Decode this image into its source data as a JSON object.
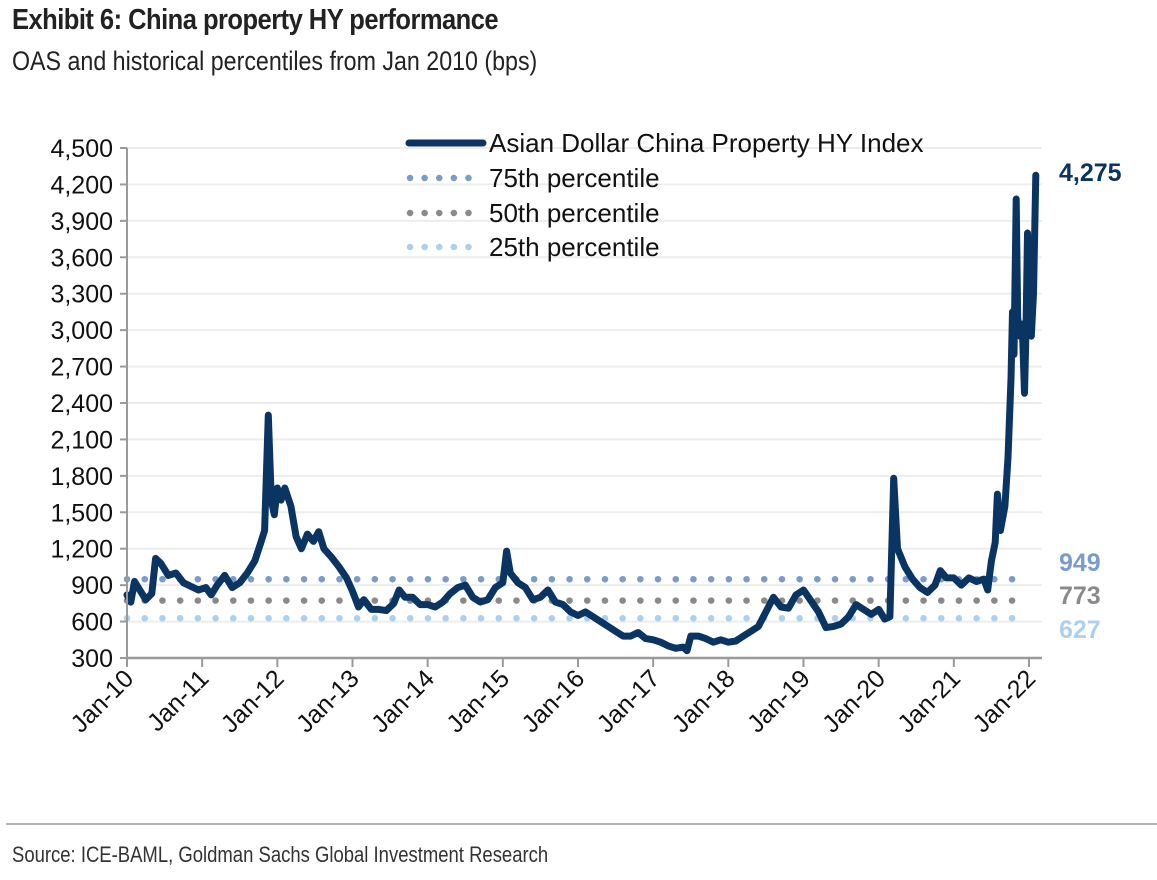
{
  "header": {
    "title": "Exhibit 6: China property HY performance",
    "subtitle": "OAS and historical percentiles from Jan 2010 (bps)"
  },
  "footer": {
    "source": "Source: ICE-BAML, Goldman Sachs Global Investment Research"
  },
  "colors": {
    "index": "#0a3563",
    "p75": "#7a9ccb",
    "p50": "#8a8a8a",
    "p25": "#acd0ee",
    "grid": "#ededed",
    "axis": "#9a9a9a"
  },
  "chart_data": {
    "type": "line",
    "title": "Exhibit 6: China property HY performance",
    "subtitle": "OAS and historical percentiles from Jan 2010 (bps)",
    "xlabel": "",
    "ylabel": "",
    "ylim": [
      300,
      4500
    ],
    "yticks": [
      300,
      600,
      900,
      1200,
      1500,
      1800,
      2100,
      2400,
      2700,
      3000,
      3300,
      3600,
      3900,
      4200,
      4500
    ],
    "ytick_labels": [
      "300",
      "600",
      "900",
      "1,200",
      "1,500",
      "1,800",
      "2,100",
      "2,400",
      "2,700",
      "3,000",
      "3,300",
      "3,600",
      "3,900",
      "4,200",
      "4,500"
    ],
    "xlim": [
      2010.0,
      2022.2
    ],
    "xticks": [
      2010,
      2011,
      2012,
      2013,
      2014,
      2015,
      2016,
      2017,
      2018,
      2019,
      2020,
      2021,
      2022
    ],
    "xtick_labels": [
      "Jan-10",
      "Jan-11",
      "Jan-12",
      "Jan-13",
      "Jan-14",
      "Jan-15",
      "Jan-16",
      "Jan-17",
      "Jan-18",
      "Jan-19",
      "Jan-20",
      "Jan-21",
      "Jan-22"
    ],
    "grid": true,
    "legend": {
      "placement": "top-center",
      "entries": [
        {
          "label": "Asian Dollar China Property HY Index",
          "style": "solid",
          "series": "index"
        },
        {
          "label": "75th percentile",
          "style": "dotted",
          "series": "p75"
        },
        {
          "label": "50th percentile",
          "style": "dotted",
          "series": "p50"
        },
        {
          "label": "25th percentile",
          "style": "dotted",
          "series": "p25"
        }
      ]
    },
    "series": [
      {
        "name": "Asian Dollar China Property HY Index",
        "key": "index",
        "points": [
          [
            2010.0,
            820
          ],
          [
            2010.05,
            760
          ],
          [
            2010.1,
            930
          ],
          [
            2010.18,
            850
          ],
          [
            2010.25,
            780
          ],
          [
            2010.33,
            830
          ],
          [
            2010.38,
            1120
          ],
          [
            2010.45,
            1080
          ],
          [
            2010.55,
            980
          ],
          [
            2010.65,
            1000
          ],
          [
            2010.75,
            920
          ],
          [
            2010.85,
            890
          ],
          [
            2010.95,
            860
          ],
          [
            2011.05,
            880
          ],
          [
            2011.12,
            820
          ],
          [
            2011.2,
            900
          ],
          [
            2011.3,
            980
          ],
          [
            2011.4,
            880
          ],
          [
            2011.5,
            920
          ],
          [
            2011.6,
            1000
          ],
          [
            2011.7,
            1100
          ],
          [
            2011.78,
            1250
          ],
          [
            2011.83,
            1350
          ],
          [
            2011.88,
            2300
          ],
          [
            2011.92,
            1600
          ],
          [
            2011.96,
            1480
          ],
          [
            2012.0,
            1700
          ],
          [
            2012.05,
            1600
          ],
          [
            2012.1,
            1700
          ],
          [
            2012.18,
            1550
          ],
          [
            2012.25,
            1300
          ],
          [
            2012.32,
            1200
          ],
          [
            2012.4,
            1320
          ],
          [
            2012.48,
            1260
          ],
          [
            2012.55,
            1340
          ],
          [
            2012.62,
            1200
          ],
          [
            2012.72,
            1130
          ],
          [
            2012.82,
            1050
          ],
          [
            2012.92,
            960
          ],
          [
            2013.0,
            850
          ],
          [
            2013.08,
            720
          ],
          [
            2013.15,
            780
          ],
          [
            2013.25,
            700
          ],
          [
            2013.35,
            700
          ],
          [
            2013.45,
            690
          ],
          [
            2013.55,
            750
          ],
          [
            2013.62,
            860
          ],
          [
            2013.7,
            800
          ],
          [
            2013.8,
            800
          ],
          [
            2013.9,
            740
          ],
          [
            2014.0,
            740
          ],
          [
            2014.1,
            720
          ],
          [
            2014.2,
            760
          ],
          [
            2014.3,
            830
          ],
          [
            2014.4,
            880
          ],
          [
            2014.5,
            900
          ],
          [
            2014.6,
            800
          ],
          [
            2014.7,
            760
          ],
          [
            2014.8,
            780
          ],
          [
            2014.9,
            880
          ],
          [
            2015.0,
            920
          ],
          [
            2015.05,
            1180
          ],
          [
            2015.1,
            1000
          ],
          [
            2015.2,
            920
          ],
          [
            2015.3,
            880
          ],
          [
            2015.4,
            780
          ],
          [
            2015.5,
            800
          ],
          [
            2015.6,
            860
          ],
          [
            2015.7,
            760
          ],
          [
            2015.8,
            740
          ],
          [
            2015.9,
            680
          ],
          [
            2016.0,
            650
          ],
          [
            2016.1,
            680
          ],
          [
            2016.2,
            640
          ],
          [
            2016.3,
            600
          ],
          [
            2016.4,
            560
          ],
          [
            2016.5,
            520
          ],
          [
            2016.6,
            480
          ],
          [
            2016.7,
            480
          ],
          [
            2016.8,
            510
          ],
          [
            2016.9,
            460
          ],
          [
            2017.0,
            450
          ],
          [
            2017.1,
            430
          ],
          [
            2017.2,
            400
          ],
          [
            2017.3,
            380
          ],
          [
            2017.4,
            390
          ],
          [
            2017.45,
            360
          ],
          [
            2017.5,
            480
          ],
          [
            2017.6,
            480
          ],
          [
            2017.7,
            460
          ],
          [
            2017.8,
            430
          ],
          [
            2017.9,
            450
          ],
          [
            2018.0,
            430
          ],
          [
            2018.1,
            440
          ],
          [
            2018.2,
            480
          ],
          [
            2018.3,
            520
          ],
          [
            2018.4,
            560
          ],
          [
            2018.5,
            680
          ],
          [
            2018.6,
            800
          ],
          [
            2018.7,
            720
          ],
          [
            2018.8,
            710
          ],
          [
            2018.9,
            820
          ],
          [
            2019.0,
            860
          ],
          [
            2019.1,
            770
          ],
          [
            2019.2,
            680
          ],
          [
            2019.3,
            550
          ],
          [
            2019.4,
            560
          ],
          [
            2019.5,
            580
          ],
          [
            2019.6,
            640
          ],
          [
            2019.7,
            740
          ],
          [
            2019.8,
            700
          ],
          [
            2019.9,
            660
          ],
          [
            2020.0,
            700
          ],
          [
            2020.08,
            620
          ],
          [
            2020.15,
            640
          ],
          [
            2020.2,
            1780
          ],
          [
            2020.25,
            1200
          ],
          [
            2020.35,
            1050
          ],
          [
            2020.45,
            950
          ],
          [
            2020.55,
            880
          ],
          [
            2020.65,
            840
          ],
          [
            2020.75,
            900
          ],
          [
            2020.82,
            1020
          ],
          [
            2020.9,
            960
          ],
          [
            2021.0,
            960
          ],
          [
            2021.1,
            900
          ],
          [
            2021.2,
            960
          ],
          [
            2021.3,
            930
          ],
          [
            2021.4,
            950
          ],
          [
            2021.45,
            860
          ],
          [
            2021.5,
            1100
          ],
          [
            2021.55,
            1250
          ],
          [
            2021.58,
            1650
          ],
          [
            2021.62,
            1350
          ],
          [
            2021.68,
            1550
          ],
          [
            2021.72,
            1950
          ],
          [
            2021.76,
            2600
          ],
          [
            2021.78,
            3150
          ],
          [
            2021.8,
            2800
          ],
          [
            2021.83,
            4080
          ],
          [
            2021.85,
            3100
          ],
          [
            2021.88,
            2950
          ],
          [
            2021.91,
            3050
          ],
          [
            2021.94,
            2480
          ],
          [
            2021.96,
            3000
          ],
          [
            2021.98,
            3800
          ],
          [
            2022.0,
            3300
          ],
          [
            2022.03,
            2950
          ],
          [
            2022.06,
            3300
          ],
          [
            2022.09,
            4275
          ]
        ]
      },
      {
        "name": "75th percentile",
        "key": "p75",
        "value": 949
      },
      {
        "name": "50th percentile",
        "key": "p50",
        "value": 773
      },
      {
        "name": "25th percentile",
        "key": "p25",
        "value": 627
      }
    ],
    "annotations": [
      {
        "text": "4,275",
        "series": "index",
        "value": 4275
      },
      {
        "text": "949",
        "series": "p75",
        "value": 949
      },
      {
        "text": "773",
        "series": "p50",
        "value": 773
      },
      {
        "text": "627",
        "series": "p25",
        "value": 627
      }
    ]
  }
}
